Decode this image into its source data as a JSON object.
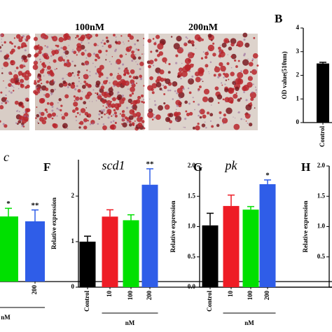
{
  "image_labels": [
    "100nM",
    "200nM"
  ],
  "chart_data": [
    {
      "type": "bar",
      "panel_label": "B",
      "ylabel": "OD value(510nm)",
      "categories": [
        "Control"
      ],
      "values": [
        2.5
      ],
      "errors": [
        0.05
      ],
      "colors": [
        "#000000"
      ],
      "ylim": [
        0,
        4
      ],
      "yticks": [
        0,
        1,
        2,
        3,
        4
      ]
    },
    {
      "type": "bar",
      "title": "c",
      "xlabel": "nM",
      "categories": [
        null,
        "200"
      ],
      "values": [
        2.0,
        1.85
      ],
      "errors": [
        0.25,
        0.35
      ],
      "annotations": [
        "*",
        "**"
      ],
      "colors": [
        "#00e000",
        "#2f5de8"
      ],
      "ylim": [
        0,
        3.7
      ]
    },
    {
      "type": "bar",
      "panel_label": "F",
      "title": "scd1",
      "ylabel": "Relative expression",
      "xlabel": "nM",
      "categories": [
        "Control",
        "10",
        "100",
        "200"
      ],
      "values": [
        1.0,
        1.55,
        1.47,
        2.25
      ],
      "errors": [
        0.12,
        0.15,
        0.12,
        0.35
      ],
      "annotations": [
        null,
        null,
        null,
        "**"
      ],
      "colors": [
        "#000000",
        "#ee1c25",
        "#00e000",
        "#2f5de8"
      ],
      "ylim": [
        0,
        2.8
      ],
      "yticks": [
        0,
        1,
        2
      ]
    },
    {
      "type": "bar",
      "panel_label": "G",
      "title": "pk",
      "ylabel": "Relative expression",
      "xlabel": "nM",
      "categories": [
        "Control",
        "10",
        "100",
        "200"
      ],
      "values": [
        1.02,
        1.34,
        1.28,
        1.7
      ],
      "errors": [
        0.2,
        0.18,
        0.05,
        0.07
      ],
      "annotations": [
        null,
        null,
        null,
        "*"
      ],
      "colors": [
        "#000000",
        "#ee1c25",
        "#00e000",
        "#2f5de8"
      ],
      "ylim": [
        0,
        2.0
      ],
      "yticks": [
        {
          "value": 0,
          "label": "0.0"
        },
        {
          "value": 0.5,
          "label": "0.5"
        },
        {
          "value": 1,
          "label": "1.0"
        },
        {
          "value": 1.5,
          "label": "1.5"
        },
        {
          "value": 2,
          "label": "2.0"
        }
      ]
    },
    {
      "type": "bar",
      "panel_label": "H",
      "ylabel": "Relative expression",
      "categories": [],
      "values": [],
      "ylim": [
        0,
        2.0
      ],
      "yticks": [
        {
          "value": 0.5,
          "label": "0.5"
        },
        {
          "value": 1,
          "label": "1.0"
        },
        {
          "value": 1.5,
          "label": "1.5"
        },
        {
          "value": 2,
          "label": "2.0"
        }
      ]
    }
  ]
}
